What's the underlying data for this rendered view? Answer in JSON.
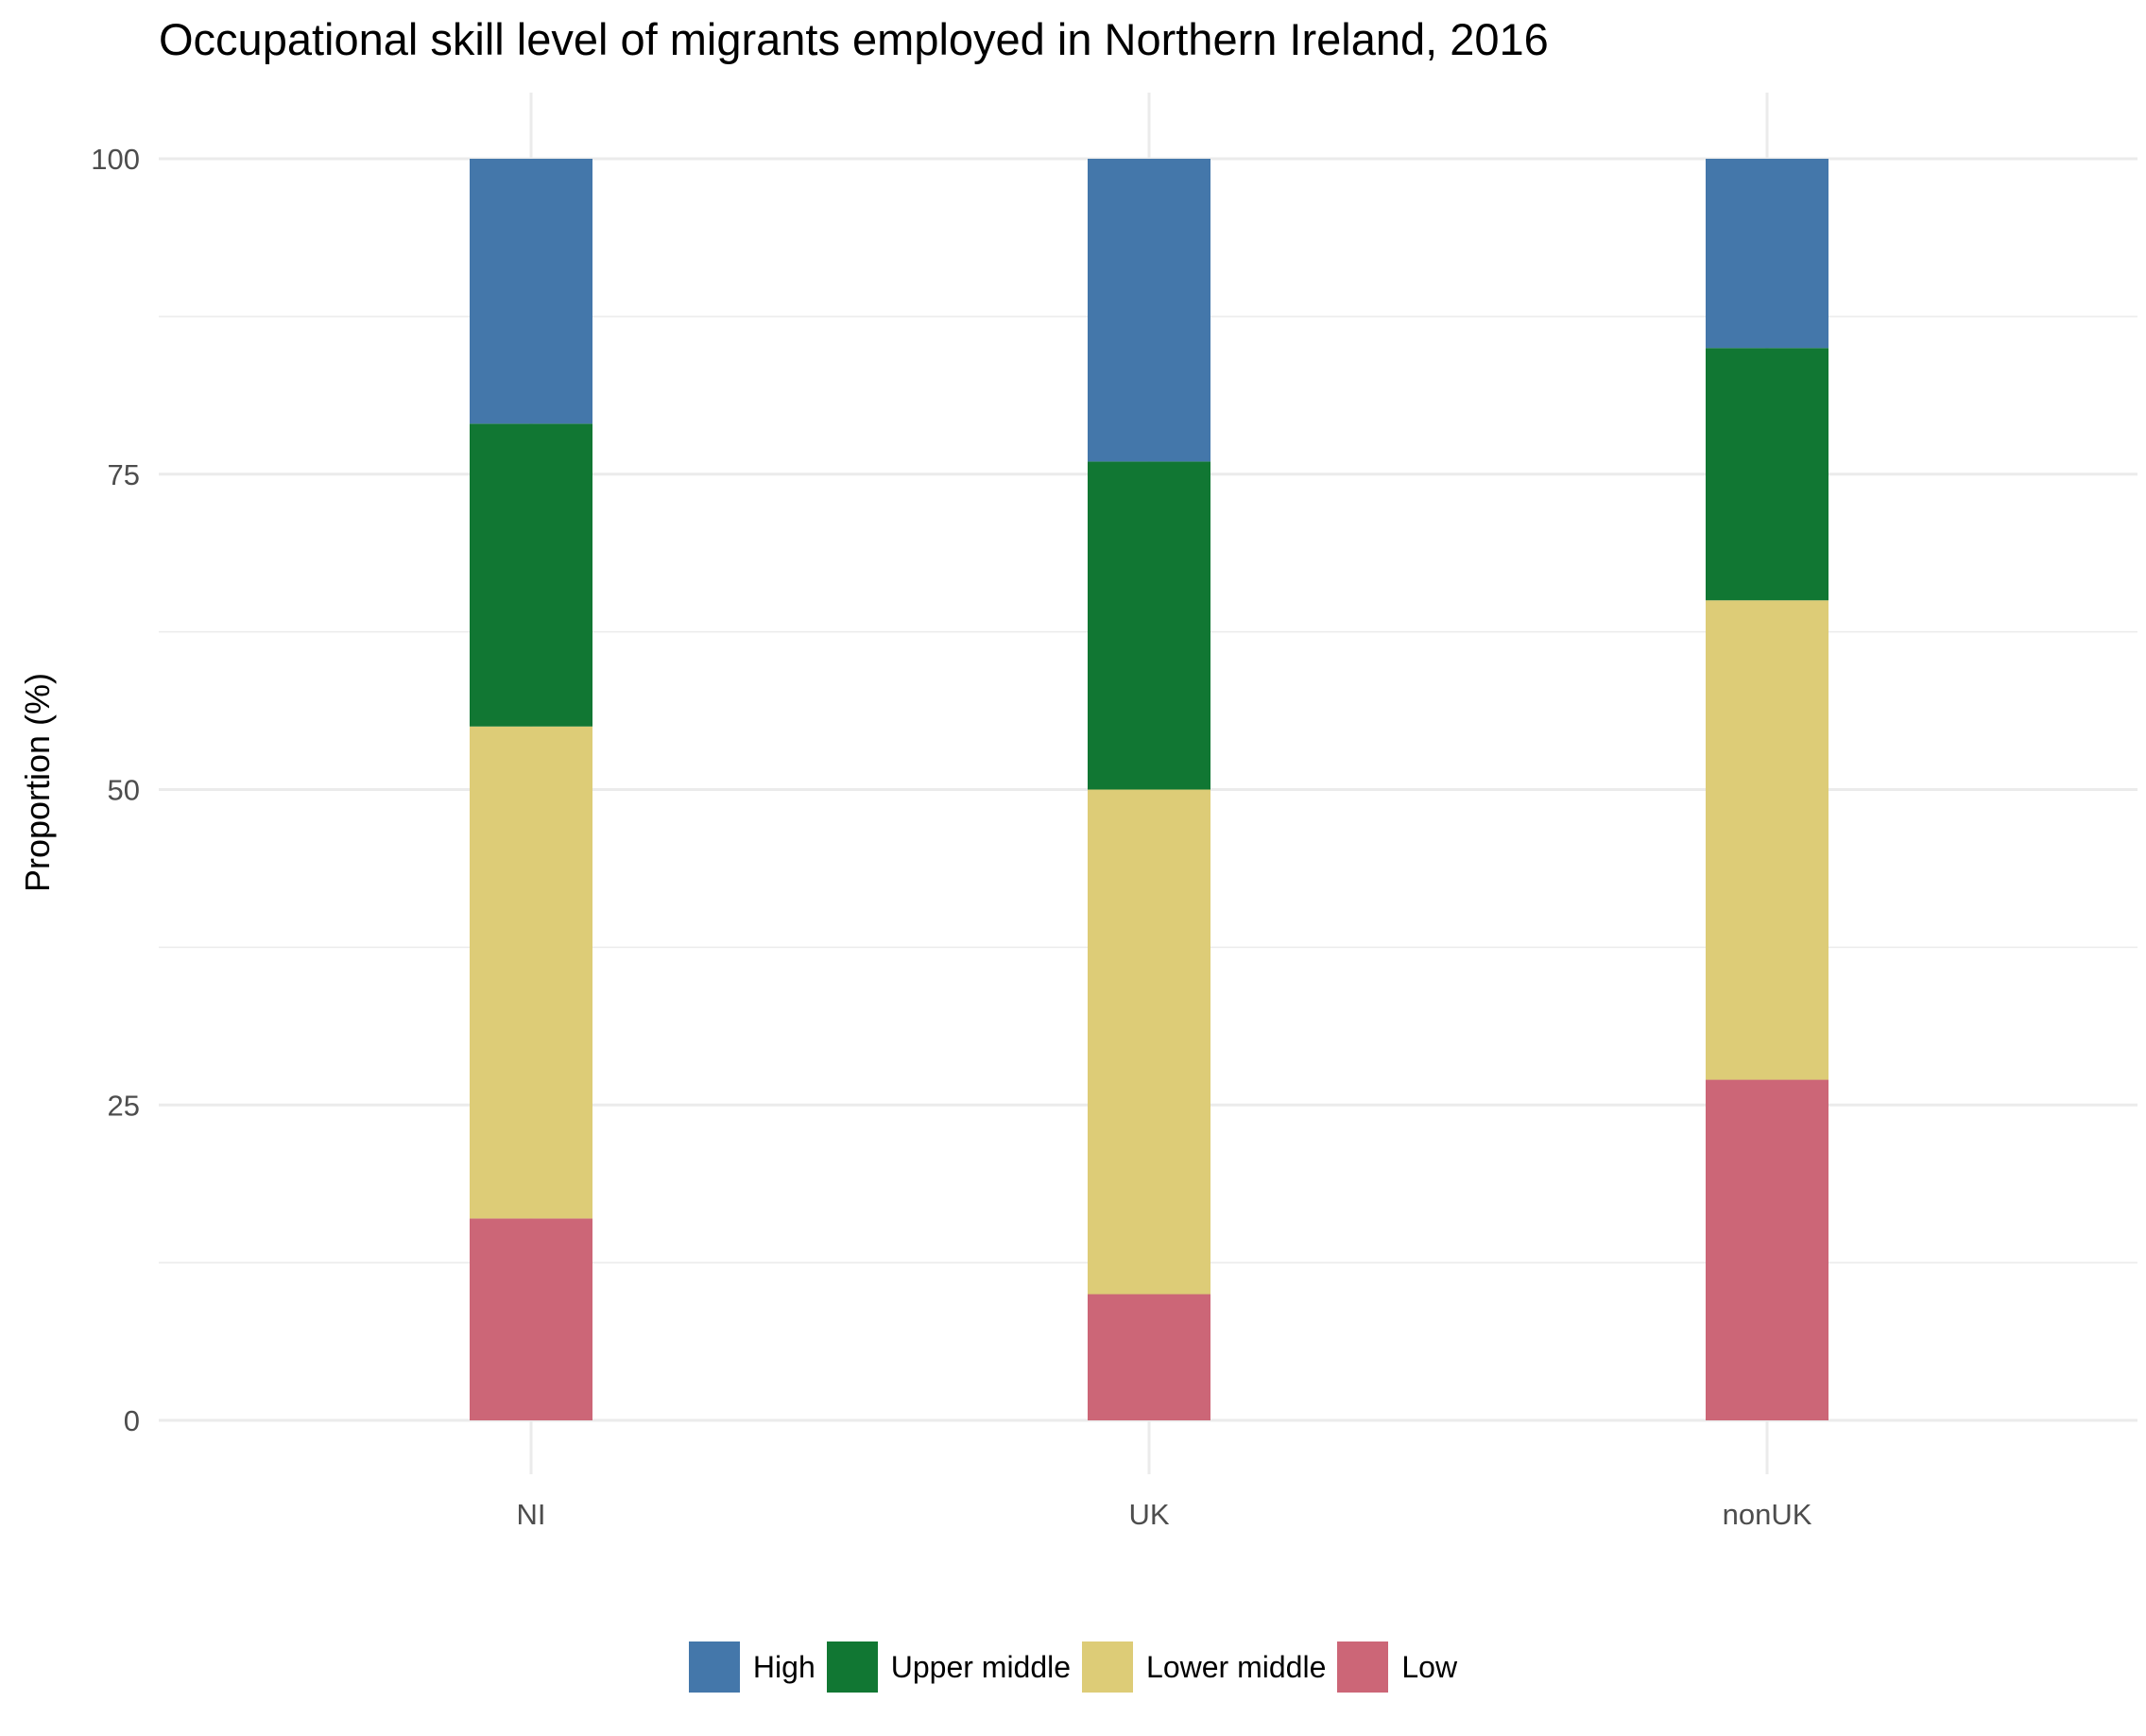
{
  "chart_data": {
    "type": "bar",
    "stacked": true,
    "title": "Occupational skill level of migrants employed in Northern Ireland, 2016",
    "xlabel": "",
    "ylabel": "Proportion (%)",
    "ylim": [
      0,
      100
    ],
    "yticks": [
      "0",
      "25",
      "50",
      "75",
      "100"
    ],
    "categories": [
      "NI",
      "UK",
      "nonUK"
    ],
    "series": [
      {
        "name": "Low",
        "color": "#CC6677",
        "values": [
          16,
          10,
          27
        ]
      },
      {
        "name": "Lower middle",
        "color": "#DDCC77",
        "values": [
          39,
          40,
          38
        ]
      },
      {
        "name": "Upper middle",
        "color": "#117733",
        "values": [
          24,
          26,
          20
        ]
      },
      {
        "name": "High",
        "color": "#4477AA",
        "values": [
          21,
          24,
          15
        ]
      }
    ],
    "legend": {
      "position": "bottom",
      "order": [
        "High",
        "Upper middle",
        "Lower middle",
        "Low"
      ]
    },
    "grid": true
  }
}
